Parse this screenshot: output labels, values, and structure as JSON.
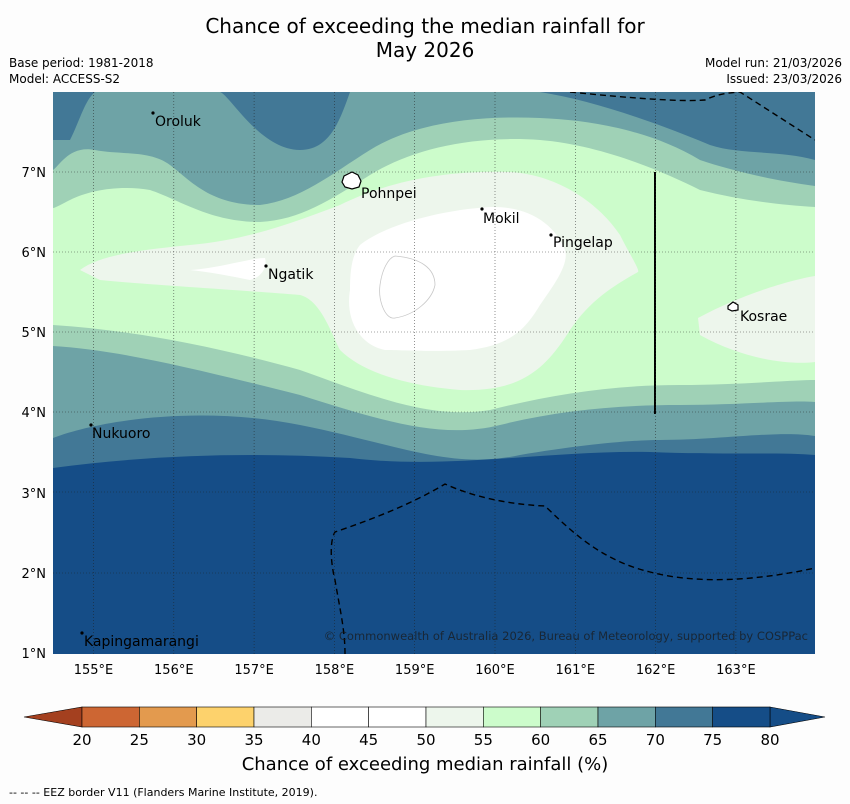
{
  "title": {
    "line1": "Chance of exceeding the median rainfall for",
    "line2": "May 2026"
  },
  "meta": {
    "base_period": "Base period: 1981-2018",
    "model": "Model: ACCESS-S2",
    "model_run": "Model run: 21/03/2026",
    "issued": "Issued: 23/03/2026"
  },
  "map": {
    "lat_ticks": [
      "1°N",
      "2°N",
      "3°N",
      "4°N",
      "5°N",
      "6°N",
      "7°N"
    ],
    "lon_ticks": [
      "155°E",
      "156°E",
      "157°E",
      "158°E",
      "159°E",
      "160°E",
      "161°E",
      "162°E",
      "163°E"
    ],
    "places": [
      "Oroluk",
      "Pohnpei",
      "Mokil",
      "Pingelap",
      "Ngatik",
      "Kosrae",
      "Nukuoro",
      "Kapingamarangi"
    ],
    "copyright": "© Commonwealth of Australia 2026, Bureau of Meteorology, supported by COSPPac"
  },
  "colorbar": {
    "ticks": [
      "20",
      "25",
      "30",
      "35",
      "40",
      "45",
      "50",
      "55",
      "60",
      "65",
      "70",
      "75",
      "80"
    ],
    "colors": [
      "#b54c26",
      "#cd6633",
      "#e39a4e",
      "#fdd26c",
      "#ebebe8",
      "#ffffff",
      "#ffffff",
      "#edf6ec",
      "#ccfccb",
      "#9fd1b6",
      "#6ea3a6",
      "#427896",
      "#154d87"
    ],
    "under_color": "#a4401f",
    "over_color": "#154d87",
    "label": "Chance of exceeding median rainfall (%)"
  },
  "footnote": "--  --  -- EEZ border V11 (Flanders Marine Institute, 2019)."
}
